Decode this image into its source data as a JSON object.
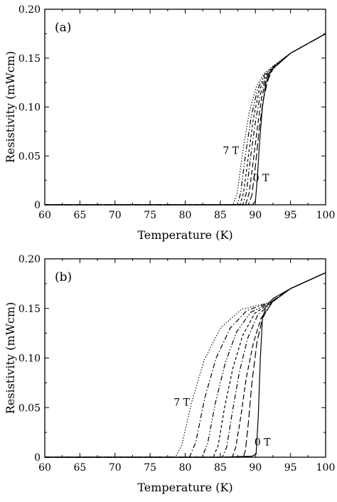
{
  "chart_data": [
    {
      "type": "line",
      "panel_label": "(a)",
      "xlabel": "Temperature (K)",
      "ylabel": "Resistivity (mWcm)",
      "xlim": [
        60,
        100
      ],
      "ylim": [
        0,
        0.2
      ],
      "xticks": [
        "60",
        "65",
        "70",
        "75",
        "80",
        "85",
        "90",
        "95",
        "100"
      ],
      "yticks": [
        "0",
        "0.05",
        "0.10",
        "0.15",
        "0.20"
      ],
      "annotations": [
        {
          "text": "7 T",
          "x": 86.5,
          "y": 0.052
        },
        {
          "text": "0 T",
          "x": 90.8,
          "y": 0.024
        }
      ],
      "series": [
        {
          "field": 0,
          "dash": "solid",
          "x": [
            60,
            85,
            89.6,
            90.0,
            90.3,
            90.6,
            91.0,
            91.5,
            92.3,
            95,
            100
          ],
          "y": [
            0,
            0,
            0.0,
            0.004,
            0.03,
            0.065,
            0.1,
            0.125,
            0.138,
            0.155,
            0.175
          ]
        },
        {
          "field": 1,
          "dash": "long-dash",
          "x": [
            60,
            85,
            89.0,
            89.5,
            90.0,
            90.5,
            91.1,
            91.8,
            92.5,
            95,
            100
          ],
          "y": [
            0,
            0,
            0.0,
            0.01,
            0.04,
            0.075,
            0.107,
            0.128,
            0.139,
            0.155,
            0.175
          ]
        },
        {
          "field": 2,
          "dash": "dash",
          "x": [
            60,
            85,
            88.6,
            89.1,
            89.7,
            90.3,
            90.9,
            91.6,
            92.5,
            95,
            100
          ],
          "y": [
            0,
            0,
            0.0,
            0.012,
            0.045,
            0.08,
            0.11,
            0.13,
            0.14,
            0.155,
            0.175
          ]
        },
        {
          "field": 3,
          "dash": "dash-dot",
          "x": [
            60,
            85,
            88.2,
            88.7,
            89.3,
            90.0,
            90.7,
            91.5,
            92.5,
            95,
            100
          ],
          "y": [
            0,
            0,
            0.0,
            0.012,
            0.048,
            0.085,
            0.113,
            0.131,
            0.14,
            0.155,
            0.175
          ]
        },
        {
          "field": 4,
          "dash": "short-dash",
          "x": [
            60,
            85,
            87.8,
            88.3,
            89.0,
            89.7,
            90.5,
            91.4,
            92.5,
            95,
            100
          ],
          "y": [
            0,
            0,
            0.0,
            0.012,
            0.05,
            0.088,
            0.116,
            0.132,
            0.141,
            0.155,
            0.175
          ]
        },
        {
          "field": 5,
          "dash": "dash-dot-dot",
          "x": [
            60,
            85,
            87.4,
            87.9,
            88.6,
            89.4,
            90.3,
            91.3,
            92.5,
            95,
            100
          ],
          "y": [
            0,
            0,
            0.0,
            0.012,
            0.052,
            0.09,
            0.118,
            0.133,
            0.141,
            0.155,
            0.175
          ]
        },
        {
          "field": 7,
          "dash": "dot",
          "x": [
            60,
            85,
            86.8,
            87.4,
            88.2,
            89.1,
            90.1,
            91.2,
            92.5,
            95,
            100
          ],
          "y": [
            0,
            0,
            0.0,
            0.012,
            0.055,
            0.094,
            0.12,
            0.134,
            0.142,
            0.155,
            0.175
          ]
        }
      ]
    },
    {
      "type": "line",
      "panel_label": "(b)",
      "xlabel": "Temperature (K)",
      "ylabel": "Resistivity (mWcm)",
      "xlim": [
        60,
        100
      ],
      "ylim": [
        0,
        0.2
      ],
      "xticks": [
        "60",
        "65",
        "70",
        "75",
        "80",
        "85",
        "90",
        "95",
        "100"
      ],
      "yticks": [
        "0",
        "0.05",
        "0.10",
        "0.15",
        "0.20"
      ],
      "annotations": [
        {
          "text": "7 T",
          "x": 79.5,
          "y": 0.052
        },
        {
          "text": "0 T",
          "x": 91.0,
          "y": 0.012
        }
      ],
      "series": [
        {
          "field": 0,
          "dash": "solid",
          "x": [
            60,
            85,
            89.5,
            90.1,
            90.4,
            90.7,
            91.0,
            91.5,
            92.5,
            95,
            100
          ],
          "y": [
            0,
            0,
            0.001,
            0.003,
            0.04,
            0.1,
            0.14,
            0.152,
            0.16,
            0.17,
            0.186
          ]
        },
        {
          "field": 1,
          "dash": "long-dash",
          "x": [
            60,
            85,
            88.3,
            88.6,
            89.0,
            89.5,
            90.2,
            91.0,
            92.5,
            95,
            100
          ],
          "y": [
            0,
            0,
            0.0,
            0.008,
            0.035,
            0.075,
            0.115,
            0.14,
            0.158,
            0.17,
            0.186
          ]
        },
        {
          "field": 2,
          "dash": "dash",
          "x": [
            60,
            84,
            86.7,
            87.2,
            87.9,
            88.7,
            89.7,
            90.8,
            92.5,
            95,
            100
          ],
          "y": [
            0,
            0,
            0.0,
            0.01,
            0.04,
            0.08,
            0.115,
            0.14,
            0.157,
            0.17,
            0.186
          ]
        },
        {
          "field": 3,
          "dash": "dash-dot",
          "x": [
            60,
            83,
            85.3,
            85.9,
            86.7,
            87.7,
            88.9,
            90.3,
            92.5,
            95,
            100
          ],
          "y": [
            0,
            0,
            0.0,
            0.01,
            0.045,
            0.085,
            0.12,
            0.143,
            0.157,
            0.17,
            0.186
          ]
        },
        {
          "field": 4,
          "dash": "short-dash",
          "x": [
            60,
            82,
            84.0,
            84.7,
            85.6,
            86.8,
            88.2,
            89.9,
            92.5,
            95,
            100
          ],
          "y": [
            0,
            0,
            0.0,
            0.012,
            0.05,
            0.09,
            0.123,
            0.145,
            0.157,
            0.17,
            0.186
          ]
        },
        {
          "field": 5,
          "dash": "dash-dot-dot",
          "x": [
            60,
            80,
            82.4,
            83.2,
            84.3,
            85.7,
            87.3,
            89.3,
            92.5,
            95,
            100
          ],
          "y": [
            0,
            0,
            0.0,
            0.014,
            0.055,
            0.095,
            0.126,
            0.146,
            0.157,
            0.17,
            0.186
          ]
        },
        {
          "field": 6,
          "dash": "dash-dot",
          "x": [
            60,
            79,
            80.6,
            81.5,
            82.8,
            84.4,
            86.4,
            88.8,
            92.5,
            95,
            100
          ],
          "y": [
            0,
            0,
            0.0,
            0.015,
            0.06,
            0.1,
            0.13,
            0.148,
            0.157,
            0.17,
            0.186
          ]
        },
        {
          "field": 7,
          "dash": "dot",
          "x": [
            60,
            77,
            78.6,
            79.5,
            80.9,
            82.7,
            85.0,
            88.0,
            92.5,
            95,
            100
          ],
          "y": [
            0,
            0,
            0.0,
            0.012,
            0.055,
            0.098,
            0.13,
            0.149,
            0.157,
            0.17,
            0.186
          ]
        }
      ]
    }
  ]
}
